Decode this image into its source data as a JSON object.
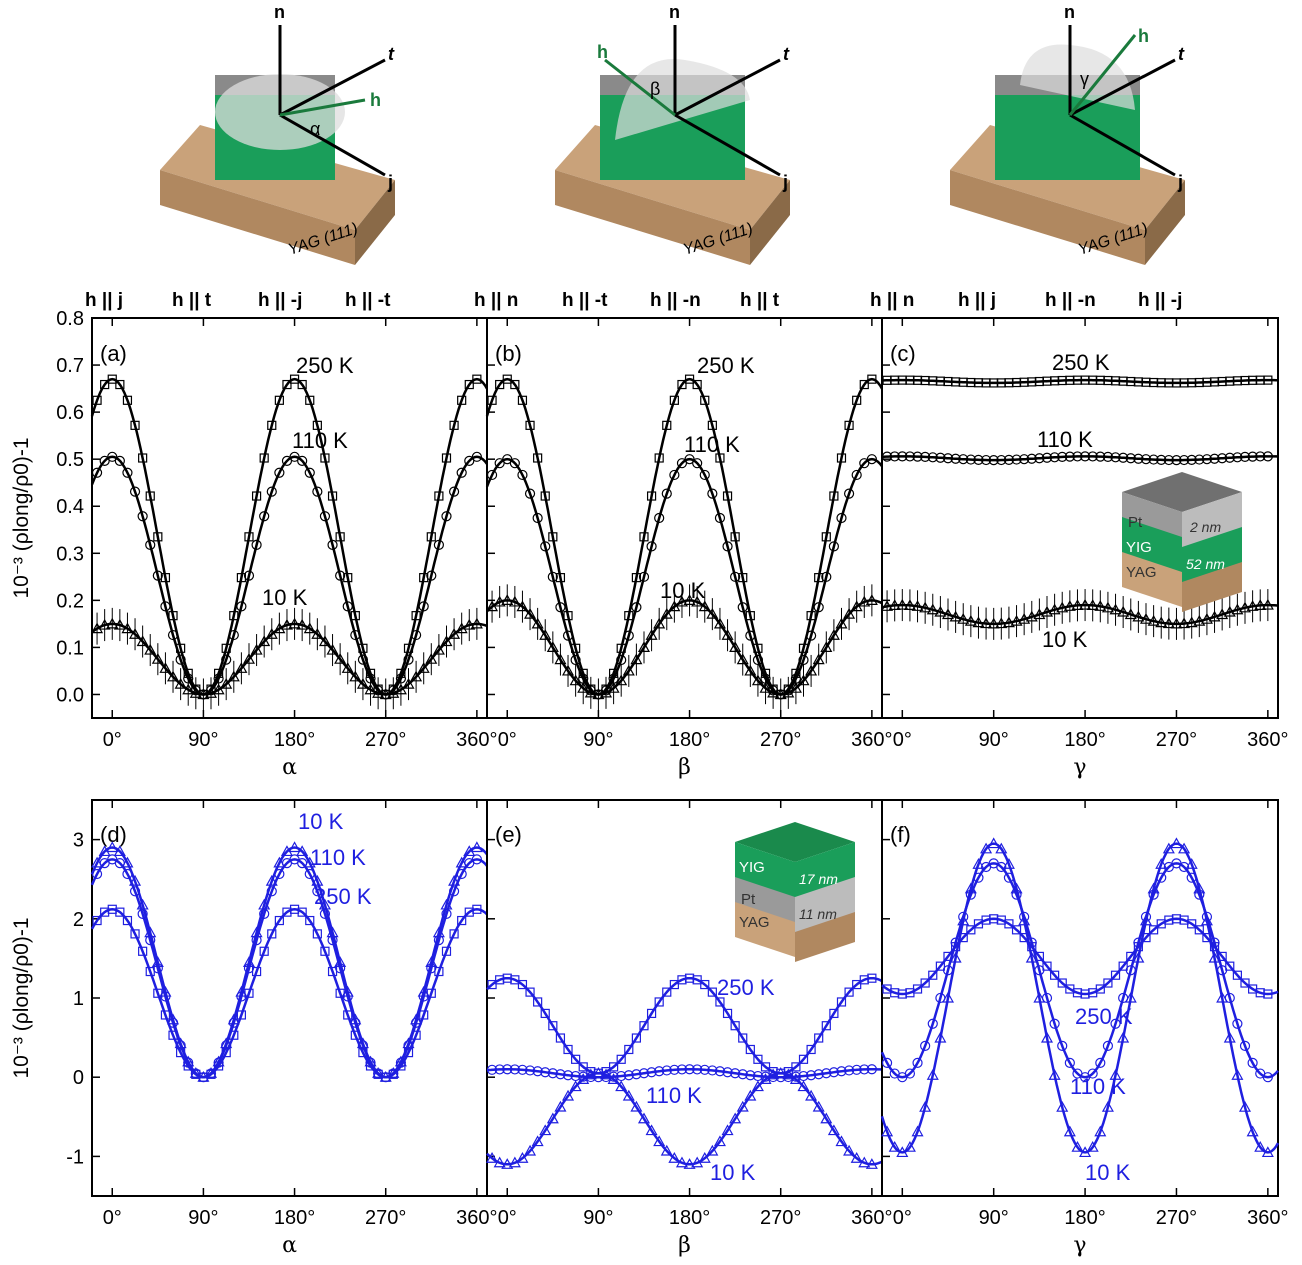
{
  "colors": {
    "black": "#000000",
    "blue": "#1f1fe0",
    "green_h": "#1a7a3c",
    "yig_green": "#1a9e5a",
    "pt_gray": "#8a8a8a",
    "yag_brown": "#b08860"
  },
  "diagrams": [
    {
      "axes": [
        "n",
        "t",
        "j",
        "h"
      ],
      "angle": "α",
      "substrate": "YAG (111)",
      "layers": [
        "Pt",
        "YIG"
      ]
    },
    {
      "axes": [
        "n",
        "t",
        "j",
        "h"
      ],
      "angle": "β",
      "substrate": "YAG (111)",
      "layers": [
        "Pt",
        "YIG"
      ]
    },
    {
      "axes": [
        "n",
        "t",
        "j",
        "h"
      ],
      "angle": "γ",
      "substrate": "YAG (111)",
      "layers": [
        "Pt",
        "YIG"
      ]
    }
  ],
  "top_labels": [
    [
      "h || j",
      "h || t",
      "h || -j",
      "h || -t"
    ],
    [
      "h || n",
      "h || -t",
      "h || -n",
      "h || t"
    ],
    [
      "h || n",
      "h || j",
      "h || -n",
      "h || -j"
    ]
  ],
  "insets": {
    "top": {
      "layers": [
        "Pt",
        "YIG",
        "YAG"
      ],
      "thickness": [
        "2 nm",
        "52 nm"
      ]
    },
    "bottom": {
      "layers": [
        "YIG",
        "Pt",
        "YAG"
      ],
      "thickness": [
        "17 nm",
        "11 nm"
      ]
    }
  },
  "chart_data": [
    {
      "type": "line",
      "panel": "(a)",
      "xlabel": "α",
      "ylabel": "10⁻³ (ρlong/ρ0)-1",
      "xlim": [
        -20,
        370
      ],
      "ylim": [
        -0.05,
        0.8
      ],
      "xticks": [
        "0°",
        "90°",
        "180°",
        "270°",
        "360°"
      ],
      "yticks": [
        "0.0",
        "0.1",
        "0.2",
        "0.3",
        "0.4",
        "0.5",
        "0.6",
        "0.7",
        "0.8"
      ],
      "series": [
        {
          "name": "250 K",
          "marker": "square",
          "form": "cos2",
          "offset": 0.0,
          "amp": 0.67,
          "phase": 0,
          "bias": 0
        },
        {
          "name": "110 K",
          "marker": "circle",
          "form": "cos2",
          "offset": 0.0,
          "amp": 0.505,
          "phase": 0,
          "bias": 0
        },
        {
          "name": "10 K",
          "marker": "triangle",
          "form": "cos2",
          "offset": 0.0,
          "amp": 0.15,
          "phase": 0,
          "bias": 0
        }
      ]
    },
    {
      "type": "line",
      "panel": "(b)",
      "xlabel": "β",
      "ylabel": "",
      "xlim": [
        -20,
        370
      ],
      "ylim": [
        -0.05,
        0.8
      ],
      "xticks": [
        "0°",
        "90°",
        "180°",
        "270°",
        "360°"
      ],
      "series": [
        {
          "name": "250 K",
          "marker": "square",
          "form": "cos2",
          "offset": 0.0,
          "amp": 0.67,
          "phase": 0,
          "bias": 0
        },
        {
          "name": "110 K",
          "marker": "circle",
          "form": "cos2",
          "offset": 0.0,
          "amp": 0.5,
          "phase": 0,
          "bias": 0
        },
        {
          "name": "10 K",
          "marker": "triangle",
          "form": "cos2",
          "offset": 0.0,
          "amp": 0.2,
          "phase": 0,
          "bias": 0
        }
      ]
    },
    {
      "type": "line",
      "panel": "(c)",
      "xlabel": "γ",
      "ylabel": "",
      "xlim": [
        -20,
        370
      ],
      "ylim": [
        -0.05,
        0.8
      ],
      "xticks": [
        "0°",
        "90°",
        "180°",
        "270°",
        "360°"
      ],
      "series": [
        {
          "name": "250 K",
          "marker": "square",
          "form": "flat",
          "offset": 0.665,
          "amp": 0.003,
          "phase": 0,
          "bias": 0
        },
        {
          "name": "110 K",
          "marker": "circle",
          "form": "flat",
          "offset": 0.502,
          "amp": 0.004,
          "phase": 0,
          "bias": 0
        },
        {
          "name": "10 K",
          "marker": "triangle",
          "form": "cos2",
          "offset": 0.15,
          "amp": 0.04,
          "phase": 0,
          "bias": 0
        }
      ]
    },
    {
      "type": "line",
      "panel": "(d)",
      "xlabel": "α",
      "ylabel": "10⁻³ (ρlong/ρ0)-1",
      "xlim": [
        -20,
        370
      ],
      "ylim": [
        -1.5,
        3.5
      ],
      "xticks": [
        "0°",
        "90°",
        "180°",
        "270°",
        "360°"
      ],
      "yticks": [
        "-1",
        "0",
        "1",
        "2",
        "3"
      ],
      "series": [
        {
          "name": "10 K",
          "marker": "triangle",
          "form": "cos2",
          "offset": 0.0,
          "amp": 2.9,
          "phase": 0,
          "bias": 0
        },
        {
          "name": "110 K",
          "marker": "circle",
          "form": "cos2",
          "offset": 0.0,
          "amp": 2.75,
          "phase": 0,
          "bias": 0
        },
        {
          "name": "250 K",
          "marker": "square",
          "form": "cos2",
          "offset": 0.0,
          "amp": 2.12,
          "phase": 0,
          "bias": 0
        }
      ]
    },
    {
      "type": "line",
      "panel": "(e)",
      "xlabel": "β",
      "ylabel": "",
      "xlim": [
        -20,
        370
      ],
      "ylim": [
        -1.5,
        3.5
      ],
      "xticks": [
        "0°",
        "90°",
        "180°",
        "270°",
        "360°"
      ],
      "series": [
        {
          "name": "250 K",
          "marker": "square",
          "form": "sin2",
          "offset": 0.05,
          "amp": 1.2,
          "phase": 0,
          "bias": 0
        },
        {
          "name": "110 K",
          "marker": "circle",
          "form": "flat",
          "offset": 0.05,
          "amp": 0.05,
          "phase": 0,
          "bias": 0
        },
        {
          "name": "10 K",
          "marker": "triangle",
          "form": "sin2",
          "offset": 0.05,
          "amp": -1.15,
          "phase": 0,
          "bias": 0
        }
      ]
    },
    {
      "type": "line",
      "panel": "(f)",
      "xlabel": "γ",
      "ylabel": "",
      "xlim": [
        -20,
        370
      ],
      "ylim": [
        -1.5,
        3.5
      ],
      "xticks": [
        "0°",
        "90°",
        "180°",
        "270°",
        "360°"
      ],
      "series": [
        {
          "name": "250 K",
          "marker": "square",
          "form": "double",
          "offset": 1.05,
          "amp": 0.95,
          "phase": 0,
          "bias": 0
        },
        {
          "name": "110 K",
          "marker": "circle",
          "form": "double",
          "offset": 0.0,
          "amp": 2.7,
          "phase": 0,
          "bias": 0
        },
        {
          "name": "10 K",
          "marker": "triangle",
          "form": "double",
          "offset": -0.95,
          "amp": 3.9,
          "phase": 0,
          "bias": 0
        }
      ]
    }
  ]
}
